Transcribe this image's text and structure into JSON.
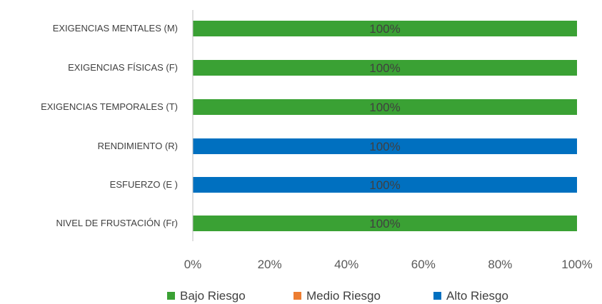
{
  "chart_data": {
    "type": "bar",
    "orientation": "horizontal",
    "stacked": true,
    "percent_stacked": true,
    "categories": [
      "EXIGENCIAS MENTALES  (M)",
      "EXIGENCIAS FÍSICAS (F)",
      "EXIGENCIAS TEMPORALES (T)",
      "RENDIMIENTO (R)",
      "ESFUERZO (E )",
      "NIVEL DE FRUSTACIÓN (Fr)"
    ],
    "series": [
      {
        "name": "Bajo Riesgo",
        "color": "#3aa134",
        "values": [
          100,
          100,
          100,
          0,
          0,
          100
        ]
      },
      {
        "name": "Medio Riesgo",
        "color": "#ed7d31",
        "values": [
          0,
          0,
          0,
          0,
          0,
          0
        ]
      },
      {
        "name": "Alto Riesgo",
        "color": "#0070c0",
        "values": [
          0,
          0,
          0,
          100,
          100,
          0
        ]
      }
    ],
    "data_labels": [
      "100%",
      "100%",
      "100%",
      "100%",
      "100%",
      "100%"
    ],
    "x_ticks": [
      "0%",
      "20%",
      "40%",
      "60%",
      "80%",
      "100%"
    ],
    "xlim": [
      0,
      100
    ],
    "title": "",
    "xlabel": "",
    "ylabel": "",
    "grid": false,
    "legend_position": "bottom",
    "axis_color": "#bfbfbf"
  }
}
